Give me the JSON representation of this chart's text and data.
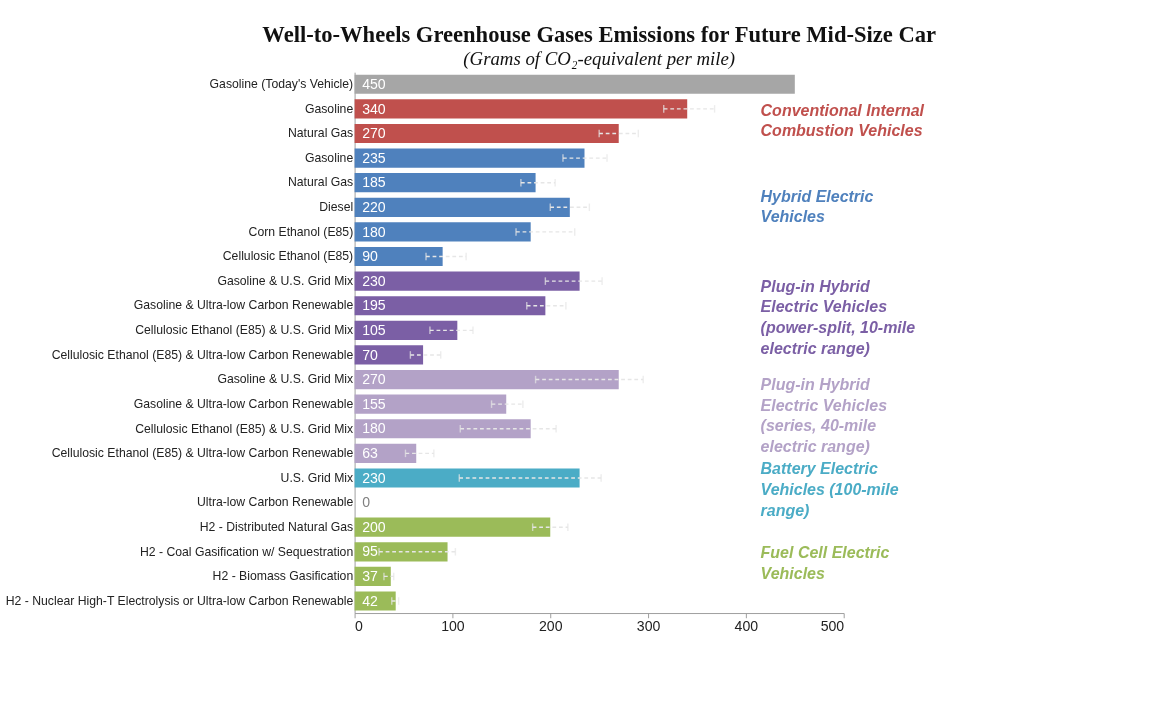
{
  "chart_data": {
    "type": "bar",
    "orientation": "horizontal",
    "title": "Well-to-Wheels Greenhouse Gases Emissions for Future Mid-Size Car",
    "subtitle": "(Grams of CO₂-equivalent per mile)",
    "categories": [
      "Gasoline (Today's Vehicle)",
      "Gasoline",
      "Natural Gas",
      "Gasoline",
      "Natural Gas",
      "Diesel",
      "Corn Ethanol (E85)",
      "Cellulosic Ethanol (E85)",
      "Gasoline & U.S. Grid Mix",
      "Gasoline & Ultra-low Carbon Renewable",
      "Cellulosic Ethanol (E85) & U.S. Grid Mix",
      "Cellulosic Ethanol (E85) & Ultra-low Carbon Renewable",
      "Gasoline & U.S. Grid Mix",
      "Gasoline & Ultra-low Carbon Renewable",
      "Cellulosic Ethanol (E85) & U.S. Grid Mix",
      "Cellulosic Ethanol (E85) & Ultra-low Carbon Renewable",
      "U.S. Grid Mix",
      "Ultra-low Carbon Renewable",
      "H2 - Distributed Natural Gas",
      "H2 - Coal Gasification w/ Sequestration",
      "H2 - Biomass Gasification",
      "H2 - Nuclear High-T Electrolysis or Ultra-low Carbon Renewable"
    ],
    "series": [
      {
        "color": "#a6a6a6",
        "values": [
          450,
          null,
          null,
          null,
          null,
          null,
          null,
          null,
          null,
          null,
          null,
          null,
          null,
          null,
          null,
          null,
          null,
          null,
          null,
          null,
          null,
          null
        ],
        "errors": [
          null,
          null,
          null,
          null,
          null,
          null,
          null,
          null,
          null,
          null,
          null,
          null,
          null,
          null,
          null,
          null,
          null,
          null,
          null,
          null,
          null,
          null
        ]
      },
      {
        "name": "Conventional Internal Combustion Vehicles",
        "color": "#c0504d",
        "values": [
          null,
          340,
          270,
          null,
          null,
          null,
          null,
          null,
          null,
          null,
          null,
          null,
          null,
          null,
          null,
          null,
          null,
          null,
          null,
          null,
          null,
          null
        ],
        "errors": [
          null,
          [
            316,
            368
          ],
          [
            250,
            290
          ],
          null,
          null,
          null,
          null,
          null,
          null,
          null,
          null,
          null,
          null,
          null,
          null,
          null,
          null,
          null,
          null,
          null,
          null,
          null
        ]
      },
      {
        "name": "Hybrid Electric Vehicles",
        "color": "#4f81bd",
        "values": [
          null,
          null,
          null,
          235,
          185,
          220,
          180,
          90,
          null,
          null,
          null,
          null,
          null,
          null,
          null,
          null,
          null,
          null,
          null,
          null,
          null,
          null
        ],
        "errors": [
          null,
          null,
          null,
          [
            213,
            258
          ],
          [
            170,
            205
          ],
          [
            200,
            240
          ],
          [
            165,
            225
          ],
          [
            73,
            114
          ],
          null,
          null,
          null,
          null,
          null,
          null,
          null,
          null,
          null,
          null,
          null,
          null,
          null,
          null
        ]
      },
      {
        "name": "Plug-in Hybrid Electric Vehicles (power-split, 10-mile electric range)",
        "color": "#7b5fa5",
        "values": [
          null,
          null,
          null,
          null,
          null,
          null,
          null,
          null,
          230,
          195,
          105,
          70,
          null,
          null,
          null,
          null,
          null,
          null,
          null,
          null,
          null,
          null
        ],
        "errors": [
          null,
          null,
          null,
          null,
          null,
          null,
          null,
          null,
          [
            195,
            253
          ],
          [
            176,
            216
          ],
          [
            77,
            121
          ],
          [
            57,
            88
          ],
          null,
          null,
          null,
          null,
          null,
          null,
          null,
          null,
          null,
          null
        ]
      },
      {
        "name": "Plug-in Hybrid Electric Vehicles (series, 40-mile electric range)",
        "color": "#b3a2c7",
        "values": [
          null,
          null,
          null,
          null,
          null,
          null,
          null,
          null,
          null,
          null,
          null,
          null,
          270,
          155,
          180,
          63,
          null,
          null,
          null,
          null,
          null,
          null
        ],
        "errors": [
          null,
          null,
          null,
          null,
          null,
          null,
          null,
          null,
          null,
          null,
          null,
          null,
          [
            185,
            295
          ],
          [
            140,
            172
          ],
          [
            108,
            206
          ],
          [
            52,
            81
          ],
          null,
          null,
          null,
          null,
          null,
          null
        ]
      },
      {
        "name": "Battery Electric Vehicles (100-mile range)",
        "color": "#4bacc6",
        "values": [
          null,
          null,
          null,
          null,
          null,
          null,
          null,
          null,
          null,
          null,
          null,
          null,
          null,
          null,
          null,
          null,
          230,
          0,
          null,
          null,
          null,
          null
        ],
        "errors": [
          null,
          null,
          null,
          null,
          null,
          null,
          null,
          null,
          null,
          null,
          null,
          null,
          null,
          null,
          null,
          null,
          [
            107,
            252
          ],
          null,
          null,
          null,
          null,
          null
        ]
      },
      {
        "name": "Fuel Cell Electric Vehicles",
        "color": "#9bbb59",
        "values": [
          null,
          null,
          null,
          null,
          null,
          null,
          null,
          null,
          null,
          null,
          null,
          null,
          null,
          null,
          null,
          null,
          null,
          null,
          200,
          95,
          37,
          42
        ],
        "errors": [
          null,
          null,
          null,
          null,
          null,
          null,
          null,
          null,
          null,
          null,
          null,
          null,
          null,
          null,
          null,
          null,
          null,
          null,
          [
            182,
            218
          ],
          [
            25,
            103
          ],
          [
            30,
            40
          ],
          [
            38,
            45
          ]
        ]
      }
    ],
    "xlim": [
      0,
      500
    ],
    "xticks": [
      0,
      100,
      200,
      300,
      400,
      500
    ],
    "data_labels": true
  }
}
